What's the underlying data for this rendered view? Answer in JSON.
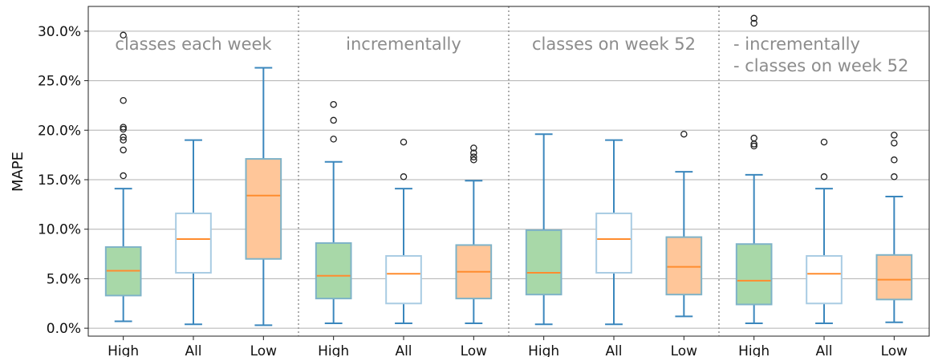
{
  "chart_data": {
    "type": "box",
    "ylabel": "MAPE",
    "y_format": "percent_1dp",
    "ylim": [
      -0.8,
      32.5
    ],
    "yticks": [
      0,
      5,
      10,
      15,
      20,
      25,
      30
    ],
    "ytick_labels": [
      "0.0%",
      "5.0%",
      "10.0%",
      "15.0%",
      "20.0%",
      "25.0%",
      "30.0%"
    ],
    "grid": "horizontal",
    "colors": {
      "High": "#a8d8a8",
      "All": "#ffffff",
      "Low": "#ffc699",
      "box_edge_High": "#7fb3c8",
      "box_edge_All": "#a9cce3",
      "box_edge_Low": "#7fb3c8",
      "whisker": "#3b87bd",
      "median": "#ff8c2e",
      "separator": "#999999",
      "grid": "#b0b0b0"
    },
    "panels": [
      {
        "title": [
          "classes each week"
        ],
        "boxes": [
          {
            "label": "High",
            "whislo": 0.7,
            "q1": 3.3,
            "med": 5.8,
            "q3": 8.2,
            "whishi": 14.1,
            "fliers": [
              15.4,
              18.0,
              19.0,
              19.3,
              20.1,
              20.3,
              23.0,
              29.6
            ]
          },
          {
            "label": "All",
            "whislo": 0.4,
            "q1": 5.6,
            "med": 9.0,
            "q3": 11.6,
            "whishi": 19.0,
            "fliers": []
          },
          {
            "label": "Low",
            "whislo": 0.3,
            "q1": 7.0,
            "med": 13.4,
            "q3": 17.1,
            "whishi": 26.3,
            "fliers": []
          }
        ]
      },
      {
        "title": [
          "incrementally"
        ],
        "boxes": [
          {
            "label": "High",
            "whislo": 0.5,
            "q1": 3.0,
            "med": 5.3,
            "q3": 8.6,
            "whishi": 16.8,
            "fliers": [
              19.1,
              21.0,
              22.6
            ]
          },
          {
            "label": "All",
            "whislo": 0.5,
            "q1": 2.5,
            "med": 5.5,
            "q3": 7.3,
            "whishi": 14.1,
            "fliers": [
              15.3,
              18.8
            ]
          },
          {
            "label": "Low",
            "whislo": 0.5,
            "q1": 3.0,
            "med": 5.7,
            "q3": 8.4,
            "whishi": 14.9,
            "fliers": [
              17.0,
              17.3,
              17.7,
              18.2
            ]
          }
        ]
      },
      {
        "title": [
          "classes on week 52"
        ],
        "boxes": [
          {
            "label": "High",
            "whislo": 0.4,
            "q1": 3.4,
            "med": 5.6,
            "q3": 9.9,
            "whishi": 19.6,
            "fliers": []
          },
          {
            "label": "All",
            "whislo": 0.4,
            "q1": 5.6,
            "med": 9.0,
            "q3": 11.6,
            "whishi": 19.0,
            "fliers": []
          },
          {
            "label": "Low",
            "whislo": 1.2,
            "q1": 3.4,
            "med": 6.2,
            "q3": 9.2,
            "whishi": 15.8,
            "fliers": [
              19.6
            ]
          }
        ]
      },
      {
        "title": [
          "- incrementally",
          "- classes on week 52"
        ],
        "boxes": [
          {
            "label": "High",
            "whislo": 0.5,
            "q1": 2.4,
            "med": 4.8,
            "q3": 8.5,
            "whishi": 15.5,
            "fliers": [
              18.4,
              18.6,
              19.2,
              30.8,
              31.3
            ]
          },
          {
            "label": "All",
            "whislo": 0.5,
            "q1": 2.5,
            "med": 5.5,
            "q3": 7.3,
            "whishi": 14.1,
            "fliers": [
              15.3,
              18.8
            ]
          },
          {
            "label": "Low",
            "whislo": 0.6,
            "q1": 2.9,
            "med": 4.9,
            "q3": 7.4,
            "whishi": 13.3,
            "fliers": [
              15.3,
              17.0,
              18.7,
              19.5
            ]
          }
        ]
      }
    ]
  }
}
